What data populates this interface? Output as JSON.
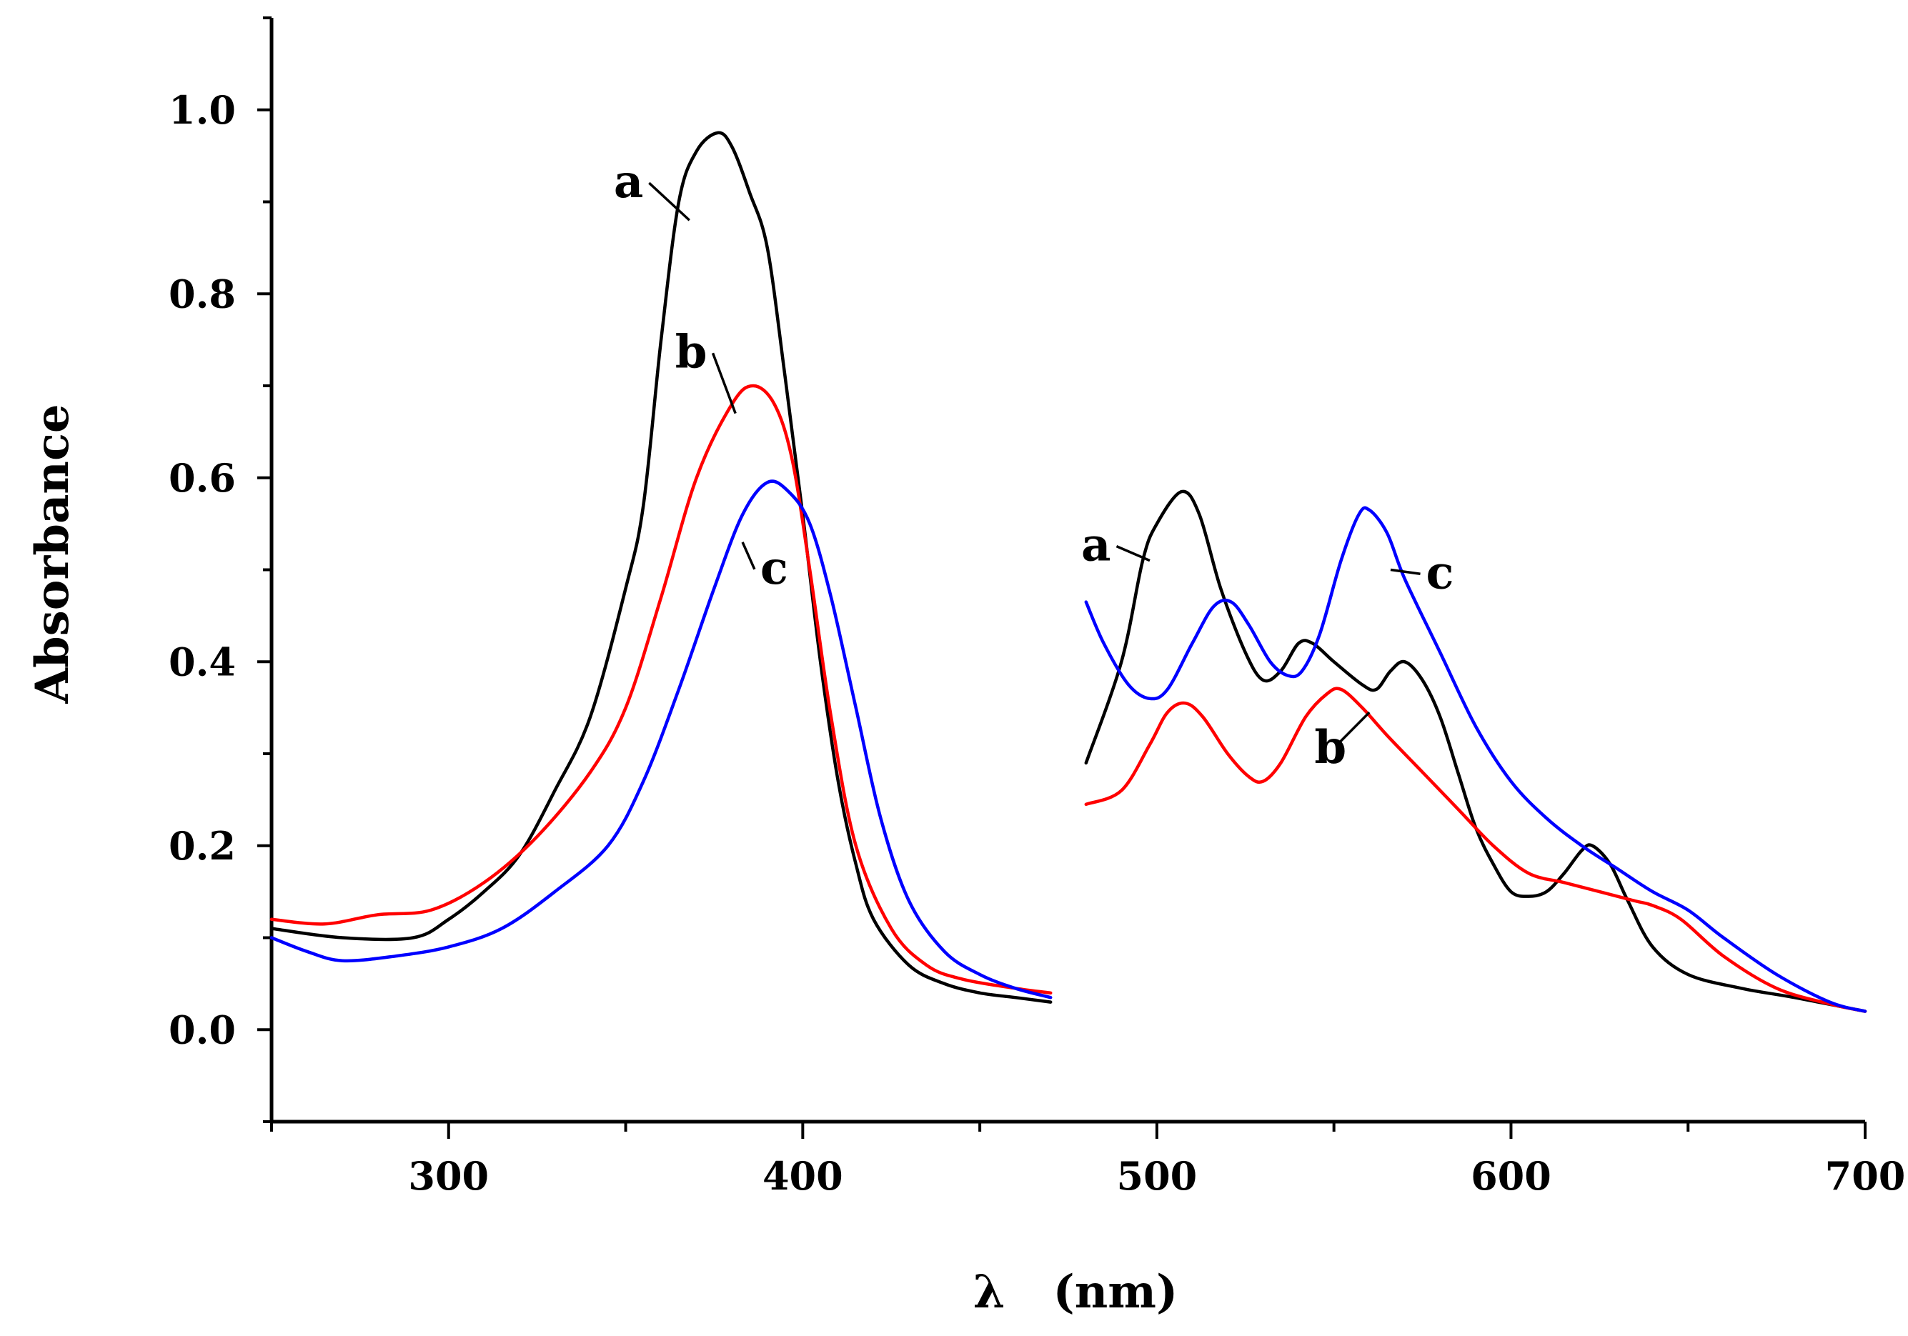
{
  "chart_data": {
    "type": "line",
    "title": "",
    "xlabel": "λ   (nm)",
    "ylabel": "Absorbance",
    "xlim": [
      250,
      700
    ],
    "ylim": [
      -0.1,
      1.1
    ],
    "grid": false,
    "legend": "none (curves labeled a, b, c directly)",
    "xticks": [
      {
        "value": 300,
        "label": "300"
      },
      {
        "value": 400,
        "label": "400"
      },
      {
        "value": 500,
        "label": "500"
      },
      {
        "value": 600,
        "label": "600"
      },
      {
        "value": 700,
        "label": "700"
      }
    ],
    "xminor": [
      250,
      350,
      450,
      550,
      650
    ],
    "yticks": [
      {
        "value": 0.0,
        "label": "0.0"
      },
      {
        "value": 0.2,
        "label": "0.2"
      },
      {
        "value": 0.4,
        "label": "0.4"
      },
      {
        "value": 0.6,
        "label": "0.6"
      },
      {
        "value": 0.8,
        "label": "0.8"
      },
      {
        "value": 1.0,
        "label": "1.0"
      }
    ],
    "yminor": [
      -0.1,
      0.1,
      0.3,
      0.5,
      0.7,
      0.9,
      1.1
    ],
    "series": [
      {
        "name": "a",
        "color": "#000000",
        "segments": [
          [
            [
              250,
              0.11
            ],
            [
              270,
              0.1
            ],
            [
              290,
              0.1
            ],
            [
              300,
              0.12
            ],
            [
              310,
              0.15
            ],
            [
              320,
              0.19
            ],
            [
              330,
              0.26
            ],
            [
              340,
              0.34
            ],
            [
              350,
              0.48
            ],
            [
              355,
              0.57
            ],
            [
              360,
              0.75
            ],
            [
              365,
              0.9
            ],
            [
              370,
              0.955
            ],
            [
              376,
              0.975
            ],
            [
              380,
              0.96
            ],
            [
              385,
              0.91
            ],
            [
              390,
              0.85
            ],
            [
              395,
              0.71
            ],
            [
              400,
              0.56
            ],
            [
              405,
              0.4
            ],
            [
              410,
              0.27
            ],
            [
              415,
              0.18
            ],
            [
              420,
              0.12
            ],
            [
              430,
              0.07
            ],
            [
              440,
              0.05
            ],
            [
              450,
              0.04
            ],
            [
              460,
              0.035
            ],
            [
              470,
              0.03
            ]
          ],
          [
            [
              480,
              0.29
            ],
            [
              490,
              0.4
            ],
            [
              496,
              0.51
            ],
            [
              500,
              0.55
            ],
            [
              507,
              0.585
            ],
            [
              512,
              0.56
            ],
            [
              518,
              0.48
            ],
            [
              525,
              0.41
            ],
            [
              530,
              0.38
            ],
            [
              535,
              0.39
            ],
            [
              540,
              0.42
            ],
            [
              544,
              0.42
            ],
            [
              550,
              0.4
            ],
            [
              558,
              0.375
            ],
            [
              562,
              0.37
            ],
            [
              566,
              0.39
            ],
            [
              570,
              0.4
            ],
            [
              575,
              0.38
            ],
            [
              580,
              0.34
            ],
            [
              585,
              0.28
            ],
            [
              590,
              0.22
            ],
            [
              595,
              0.18
            ],
            [
              600,
              0.15
            ],
            [
              605,
              0.145
            ],
            [
              610,
              0.15
            ],
            [
              615,
              0.17
            ],
            [
              620,
              0.195
            ],
            [
              623,
              0.2
            ],
            [
              628,
              0.18
            ],
            [
              633,
              0.14
            ],
            [
              640,
              0.09
            ],
            [
              650,
              0.06
            ],
            [
              665,
              0.045
            ],
            [
              680,
              0.035
            ],
            [
              700,
              0.02
            ]
          ]
        ]
      },
      {
        "name": "b",
        "color": "#ff0000",
        "segments": [
          [
            [
              250,
              0.12
            ],
            [
              265,
              0.115
            ],
            [
              280,
              0.125
            ],
            [
              295,
              0.13
            ],
            [
              310,
              0.16
            ],
            [
              325,
              0.21
            ],
            [
              340,
              0.28
            ],
            [
              350,
              0.35
            ],
            [
              360,
              0.47
            ],
            [
              370,
              0.6
            ],
            [
              380,
              0.68
            ],
            [
              386,
              0.7
            ],
            [
              392,
              0.68
            ],
            [
              397,
              0.62
            ],
            [
              402,
              0.5
            ],
            [
              408,
              0.34
            ],
            [
              415,
              0.2
            ],
            [
              425,
              0.11
            ],
            [
              435,
              0.07
            ],
            [
              445,
              0.055
            ],
            [
              460,
              0.045
            ],
            [
              470,
              0.04
            ]
          ],
          [
            [
              480,
              0.245
            ],
            [
              490,
              0.26
            ],
            [
              498,
              0.31
            ],
            [
              503,
              0.345
            ],
            [
              508,
              0.355
            ],
            [
              513,
              0.34
            ],
            [
              520,
              0.3
            ],
            [
              526,
              0.275
            ],
            [
              530,
              0.27
            ],
            [
              535,
              0.29
            ],
            [
              542,
              0.34
            ],
            [
              548,
              0.365
            ],
            [
              552,
              0.37
            ],
            [
              558,
              0.35
            ],
            [
              565,
              0.32
            ],
            [
              575,
              0.28
            ],
            [
              585,
              0.24
            ],
            [
              595,
              0.2
            ],
            [
              605,
              0.17
            ],
            [
              615,
              0.16
            ],
            [
              625,
              0.15
            ],
            [
              635,
              0.14
            ],
            [
              640,
              0.135
            ],
            [
              648,
              0.12
            ],
            [
              660,
              0.08
            ],
            [
              675,
              0.045
            ],
            [
              690,
              0.028
            ],
            [
              700,
              0.02
            ]
          ]
        ]
      },
      {
        "name": "c",
        "color": "#0000ff",
        "segments": [
          [
            [
              250,
              0.1
            ],
            [
              260,
              0.085
            ],
            [
              270,
              0.075
            ],
            [
              285,
              0.08
            ],
            [
              300,
              0.09
            ],
            [
              315,
              0.11
            ],
            [
              330,
              0.15
            ],
            [
              345,
              0.2
            ],
            [
              355,
              0.27
            ],
            [
              365,
              0.37
            ],
            [
              375,
              0.48
            ],
            [
              383,
              0.56
            ],
            [
              390,
              0.595
            ],
            [
              396,
              0.585
            ],
            [
              402,
              0.55
            ],
            [
              408,
              0.47
            ],
            [
              415,
              0.35
            ],
            [
              422,
              0.23
            ],
            [
              430,
              0.14
            ],
            [
              440,
              0.085
            ],
            [
              450,
              0.06
            ],
            [
              460,
              0.045
            ],
            [
              470,
              0.035
            ]
          ],
          [
            [
              480,
              0.465
            ],
            [
              485,
              0.42
            ],
            [
              492,
              0.375
            ],
            [
              498,
              0.36
            ],
            [
              503,
              0.37
            ],
            [
              510,
              0.42
            ],
            [
              516,
              0.46
            ],
            [
              521,
              0.465
            ],
            [
              526,
              0.44
            ],
            [
              532,
              0.4
            ],
            [
              537,
              0.385
            ],
            [
              541,
              0.39
            ],
            [
              546,
              0.43
            ],
            [
              552,
              0.51
            ],
            [
              557,
              0.56
            ],
            [
              560,
              0.565
            ],
            [
              565,
              0.54
            ],
            [
              570,
              0.49
            ],
            [
              580,
              0.41
            ],
            [
              590,
              0.33
            ],
            [
              600,
              0.27
            ],
            [
              610,
              0.23
            ],
            [
              620,
              0.2
            ],
            [
              630,
              0.175
            ],
            [
              640,
              0.15
            ],
            [
              650,
              0.13
            ],
            [
              660,
              0.1
            ],
            [
              675,
              0.06
            ],
            [
              690,
              0.03
            ],
            [
              700,
              0.02
            ]
          ]
        ]
      }
    ],
    "annotations": [
      {
        "text": "a",
        "series": "a",
        "x": 368,
        "y": 0.88,
        "textX": 355,
        "textY": 0.905,
        "align": "end"
      },
      {
        "text": "b",
        "series": "b",
        "x": 381,
        "y": 0.67,
        "textX": 373,
        "textY": 0.72,
        "align": "end"
      },
      {
        "text": "c",
        "series": "c",
        "x": 383,
        "y": 0.53,
        "textX": 388,
        "textY": 0.485,
        "align": "start"
      },
      {
        "text": "a",
        "series": "a",
        "x": 498,
        "y": 0.51,
        "textX": 487,
        "textY": 0.51,
        "align": "end"
      },
      {
        "text": "b",
        "series": "b",
        "x": 560,
        "y": 0.345,
        "textX": 549,
        "textY": 0.29,
        "align": "middle"
      },
      {
        "text": "c",
        "series": "c",
        "x": 566,
        "y": 0.5,
        "textX": 576,
        "textY": 0.48,
        "align": "start"
      }
    ]
  }
}
